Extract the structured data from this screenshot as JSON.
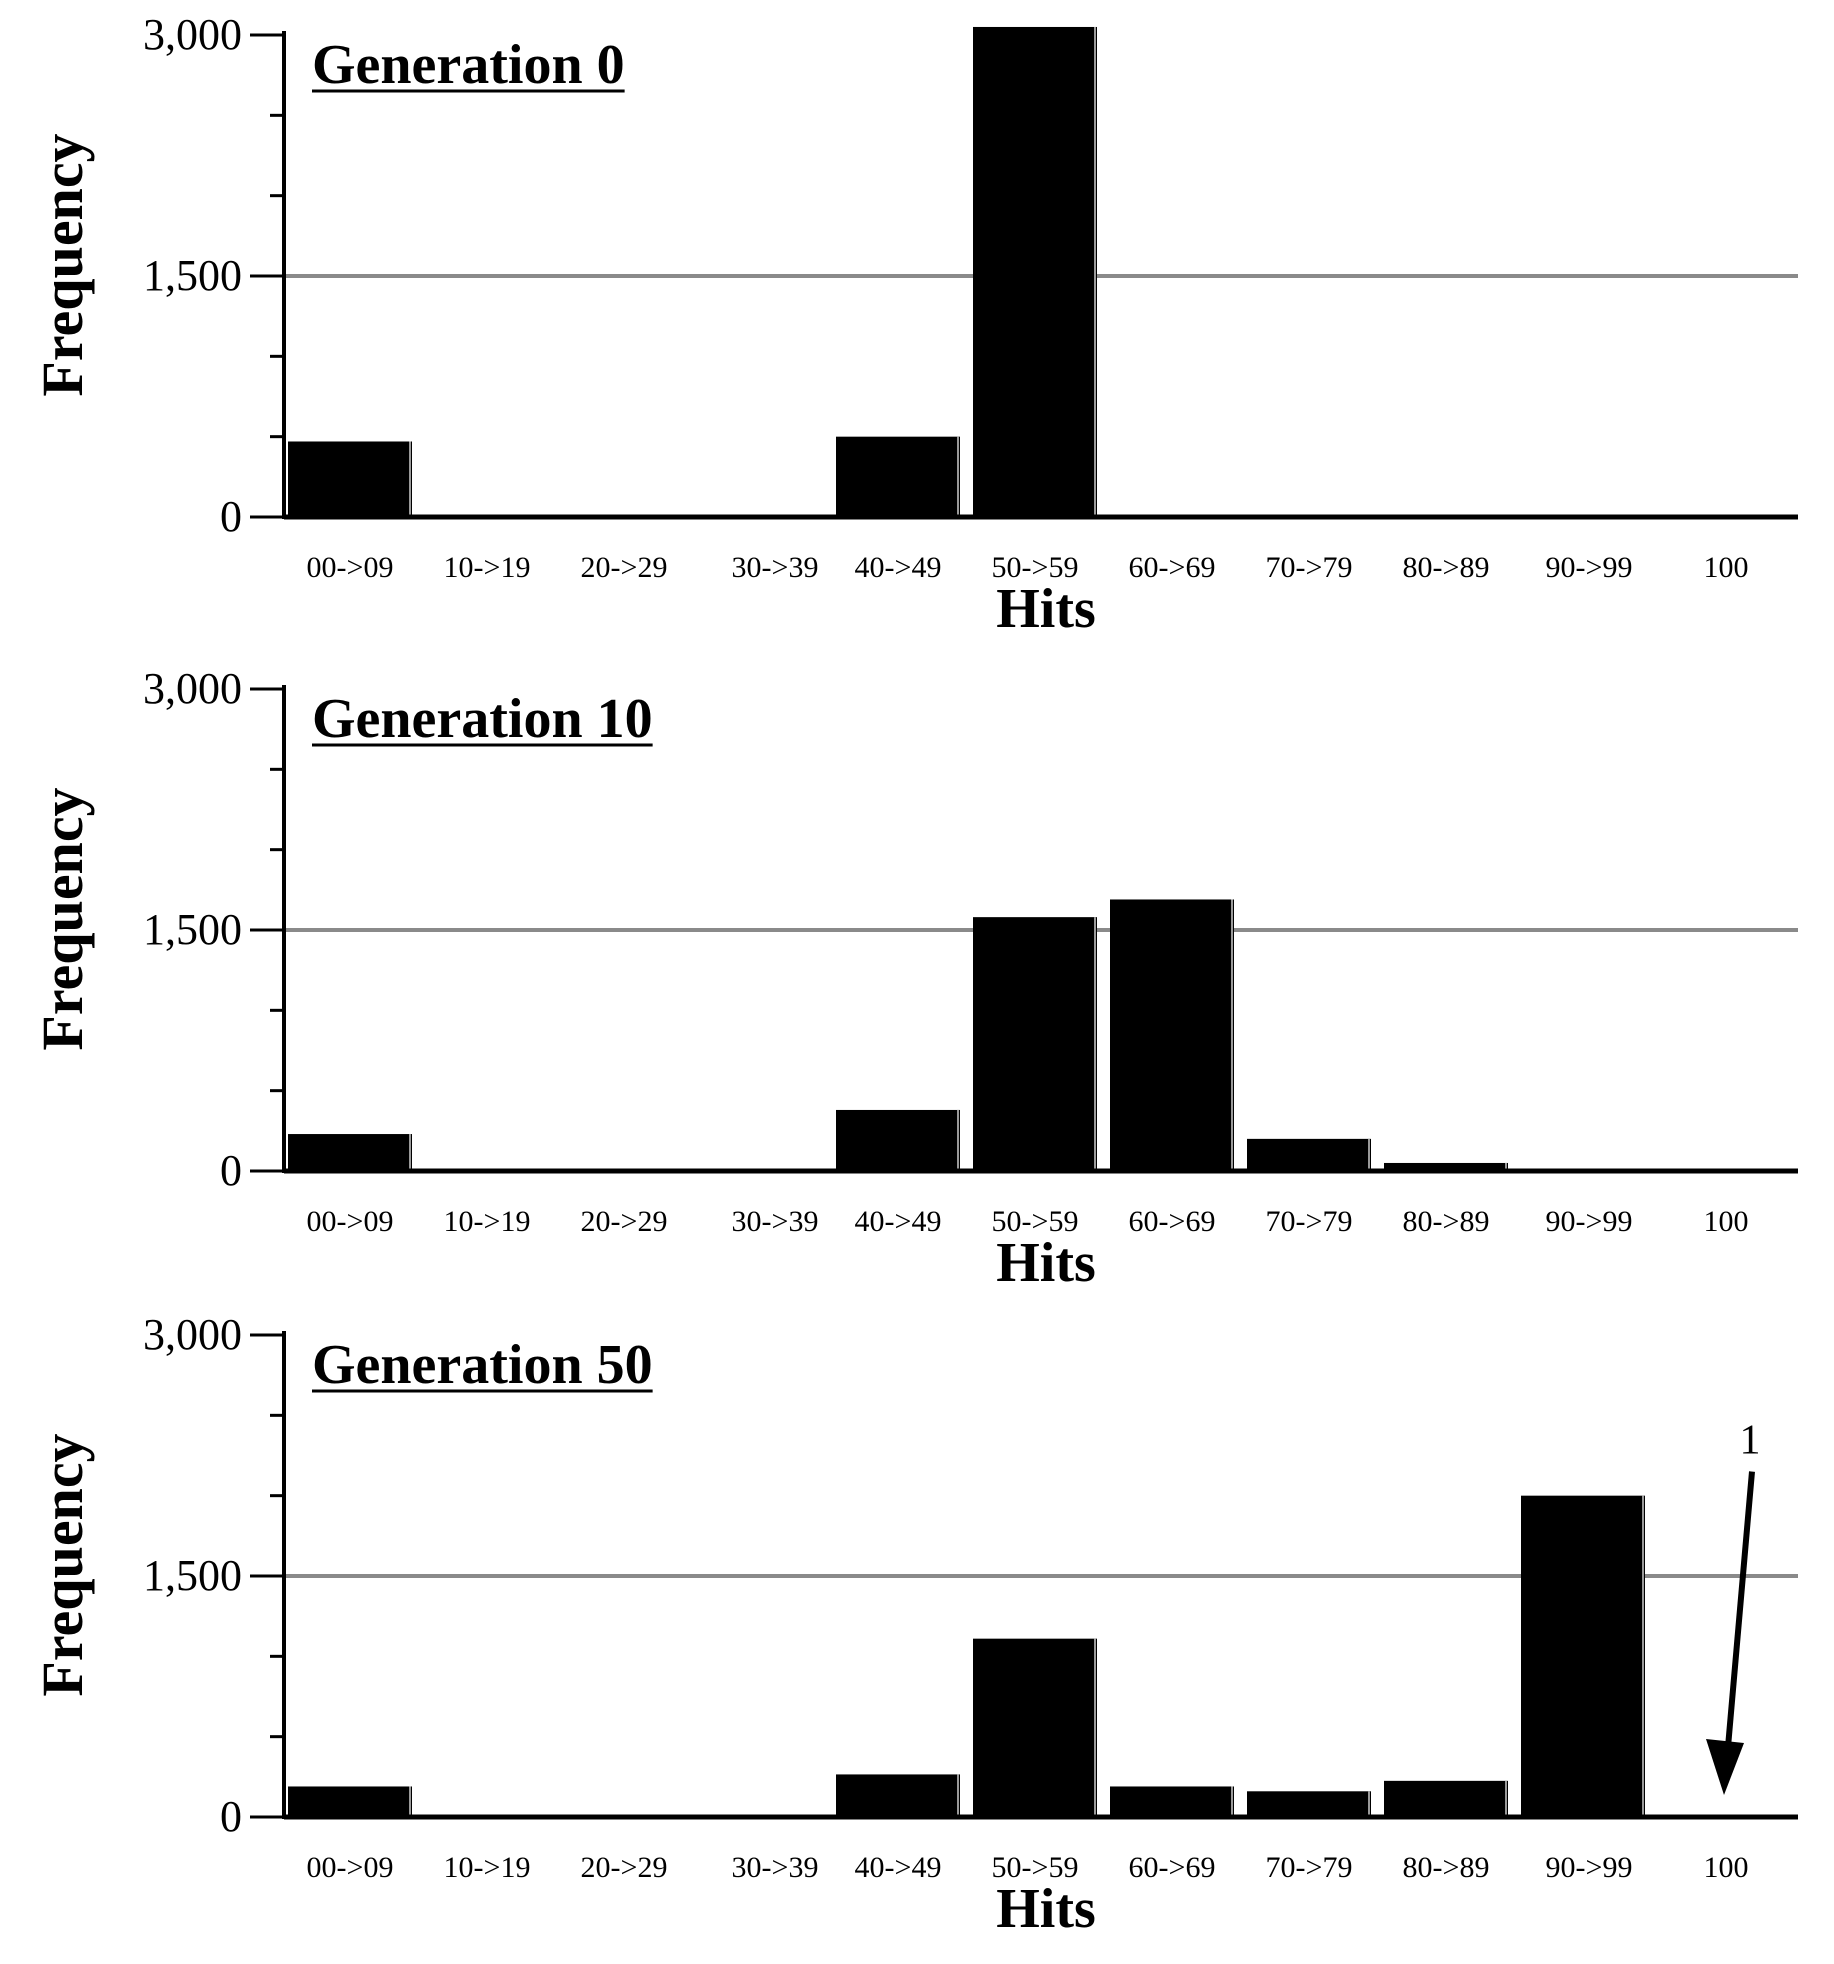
{
  "chart_data": [
    {
      "type": "bar",
      "title": "Generation 0",
      "xlabel": "Hits",
      "ylabel": "Frequency",
      "categories": [
        "00->09",
        "10->19",
        "20->29",
        "30->39",
        "40->49",
        "50->59",
        "60->69",
        "70->79",
        "80->89",
        "90->99",
        "100"
      ],
      "values": [
        470,
        0,
        0,
        0,
        500,
        3050,
        10,
        0,
        0,
        0,
        0
      ],
      "ylim": [
        0,
        3000
      ],
      "yticks": [
        0,
        1500,
        3000
      ],
      "ytick_labels": [
        "0",
        "1,500",
        "3,000"
      ],
      "gridlines": [
        1500
      ]
    },
    {
      "type": "bar",
      "title": "Generation 10",
      "xlabel": "Hits",
      "ylabel": "Frequency",
      "categories": [
        "00->09",
        "10->19",
        "20->29",
        "30->39",
        "40->49",
        "50->59",
        "60->69",
        "70->79",
        "80->89",
        "90->99",
        "100"
      ],
      "values": [
        230,
        0,
        0,
        0,
        380,
        1580,
        1690,
        200,
        50,
        0,
        0
      ],
      "ylim": [
        0,
        3000
      ],
      "yticks": [
        0,
        1500,
        3000
      ],
      "ytick_labels": [
        "0",
        "1,500",
        "3,000"
      ],
      "gridlines": [
        1500
      ]
    },
    {
      "type": "bar",
      "title": "Generation 50",
      "xlabel": "Hits",
      "ylabel": "Frequency",
      "categories": [
        "00->09",
        "10->19",
        "20->29",
        "30->39",
        "40->49",
        "50->59",
        "60->69",
        "70->79",
        "80->89",
        "90->99",
        "100"
      ],
      "values": [
        190,
        0,
        0,
        0,
        265,
        1110,
        190,
        160,
        225,
        2000,
        1
      ],
      "ylim": [
        0,
        3000
      ],
      "yticks": [
        0,
        1500,
        3000
      ],
      "ytick_labels": [
        "0",
        "1,500",
        "3,000"
      ],
      "gridlines": [
        1500
      ],
      "annotation": {
        "text": "1",
        "target_category": "100"
      }
    }
  ]
}
